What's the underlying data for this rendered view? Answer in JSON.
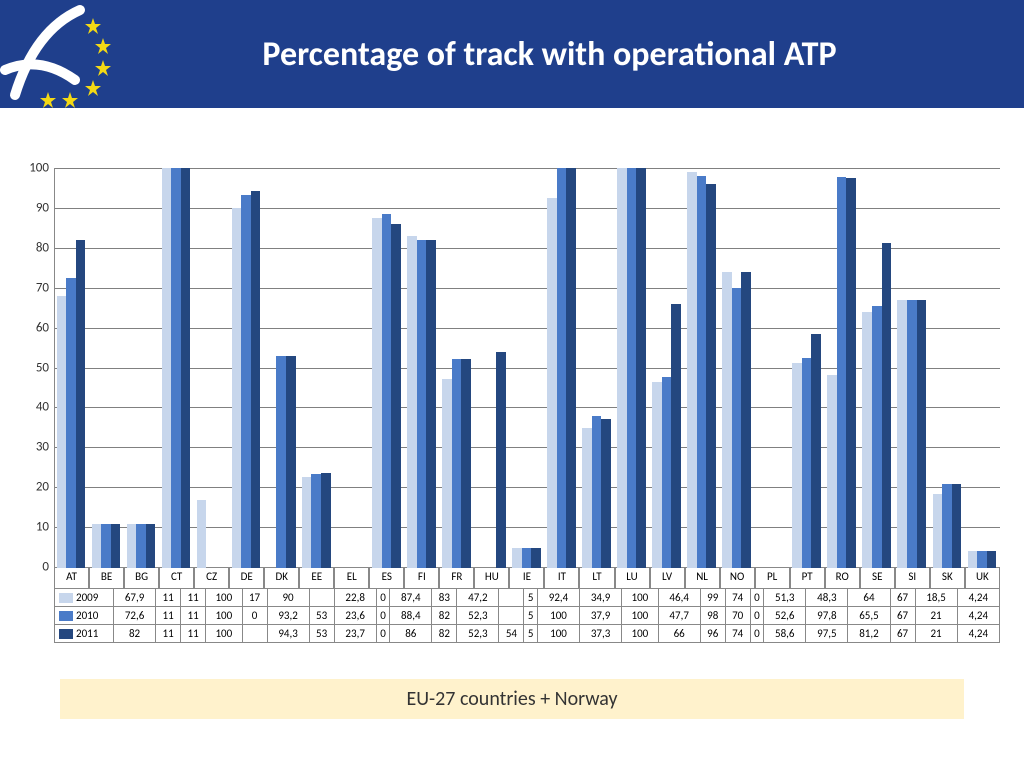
{
  "title": "Percentage of track with operational ATP",
  "footer": "EU-27 countries + Norway",
  "chart": {
    "type": "bar",
    "ylim": [
      0,
      100
    ],
    "ytick_step": 10,
    "grid_color": "#808080",
    "background_color": "#ffffff",
    "label_fontsize": 11,
    "tick_fontsize": 13,
    "categories": [
      "AT",
      "BE",
      "BG",
      "CT",
      "CZ",
      "DE",
      "DK",
      "EE",
      "EL",
      "ES",
      "FI",
      "FR",
      "HU",
      "IE",
      "IT",
      "LT",
      "LU",
      "LV",
      "NL",
      "NO",
      "PL",
      "PT",
      "RO",
      "SE",
      "SI",
      "SK",
      "UK"
    ],
    "series": [
      {
        "name": "2009",
        "color": "#c7d6ec",
        "values": [
          67.9,
          11,
          11,
          100,
          17,
          90,
          null,
          22.8,
          0,
          87.4,
          83,
          47.2,
          null,
          5,
          92.4,
          34.9,
          100,
          46.4,
          99,
          74,
          0,
          51.3,
          48.3,
          64,
          67,
          18.5,
          4.24
        ],
        "display": [
          "67,9",
          "11",
          "11",
          "100",
          "17",
          "90",
          "",
          "22,8",
          "0",
          "87,4",
          "83",
          "47,2",
          "",
          "5",
          "92,4",
          "34,9",
          "100",
          "46,4",
          "99",
          "74",
          "0",
          "51,3",
          "48,3",
          "64",
          "67",
          "18,5",
          "4,24"
        ]
      },
      {
        "name": "2010",
        "color": "#4a7bc8",
        "values": [
          72.6,
          11,
          11,
          100,
          0,
          93.2,
          53,
          23.6,
          0,
          88.4,
          82,
          52.3,
          null,
          5,
          100,
          37.9,
          100,
          47.7,
          98,
          70,
          0,
          52.6,
          97.8,
          65.5,
          67,
          21,
          4.24
        ],
        "display": [
          "72,6",
          "11",
          "11",
          "100",
          "0",
          "93,2",
          "53",
          "23,6",
          "0",
          "88,4",
          "82",
          "52,3",
          "",
          "5",
          "100",
          "37,9",
          "100",
          "47,7",
          "98",
          "70",
          "0",
          "52,6",
          "97,8",
          "65,5",
          "67",
          "21",
          "4,24"
        ]
      },
      {
        "name": "2011",
        "color": "#24477f",
        "values": [
          82,
          11,
          11,
          100,
          null,
          94.3,
          53,
          23.7,
          0,
          86,
          82,
          52.3,
          54,
          5,
          100,
          37.3,
          100,
          66,
          96,
          74,
          0,
          58.6,
          97.5,
          81.2,
          67,
          21,
          4.24
        ],
        "display": [
          "82",
          "11",
          "11",
          "100",
          "",
          "94,3",
          "53",
          "23,7",
          "0",
          "86",
          "82",
          "52,3",
          "54",
          "5",
          "100",
          "37,3",
          "100",
          "66",
          "96",
          "74",
          "0",
          "58,6",
          "97,5",
          "81,2",
          "67",
          "21",
          "4,24"
        ]
      }
    ]
  },
  "header": {
    "bg_color": "#1f3f8c",
    "star_color": "#f4d914",
    "swoosh_color": "#ffffff"
  }
}
